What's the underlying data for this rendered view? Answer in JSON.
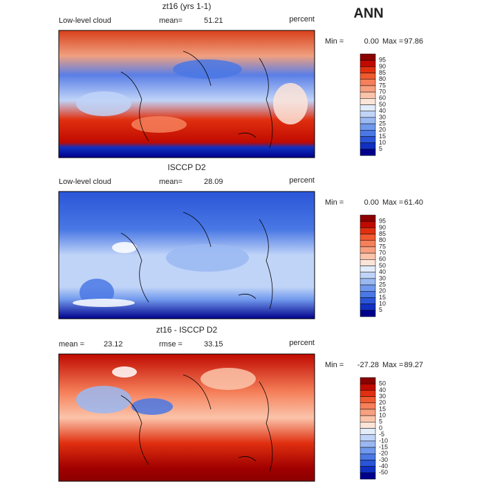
{
  "title": "ANN",
  "palette": [
    "#8b0000",
    "#c00a00",
    "#e03010",
    "#f05a30",
    "#f5805a",
    "#f8a080",
    "#fbc4aa",
    "#fde4d8",
    "#e2ecfb",
    "#c0d4f8",
    "#9ab8f2",
    "#7098ec",
    "#4a78e4",
    "#2a55d8",
    "#1030c0",
    "#00008b"
  ],
  "panels": [
    {
      "title": "zt16 (yrs 1-1)",
      "stats": [
        {
          "label": "Low-level cloud"
        },
        {
          "label": "mean=",
          "value": "51.21"
        }
      ],
      "units": "percent",
      "min_label": "Min =",
      "min": "0.00",
      "max_label": "Max =",
      "max": "97.86",
      "levels": [
        "95",
        "90",
        "85",
        "80",
        "75",
        "70",
        "60",
        "50",
        "40",
        "30",
        "25",
        "20",
        "15",
        "10",
        "5"
      ]
    },
    {
      "title": "ISCCP D2",
      "stats": [
        {
          "label": "Low-level cloud"
        },
        {
          "label": "mean=",
          "value": "28.09"
        }
      ],
      "units": "percent",
      "min_label": "Min =",
      "min": "0.00",
      "max_label": "Max =",
      "max": "61.40",
      "levels": [
        "95",
        "90",
        "85",
        "80",
        "75",
        "70",
        "60",
        "50",
        "40",
        "30",
        "25",
        "20",
        "15",
        "10",
        "5"
      ]
    },
    {
      "title": "zt16 - ISCCP D2",
      "stats": [
        {
          "label": "mean =",
          "value": "23.12"
        },
        {
          "label": "rmse =",
          "value": "33.15"
        }
      ],
      "units": "percent",
      "min_label": "Min =",
      "min": "-27.28",
      "max_label": "Max =",
      "max": "89.27",
      "levels": [
        "50",
        "40",
        "30",
        "20",
        "15",
        "10",
        "5",
        "0",
        "-5",
        "-10",
        "-15",
        "-20",
        "-30",
        "-40",
        "-50"
      ]
    }
  ]
}
